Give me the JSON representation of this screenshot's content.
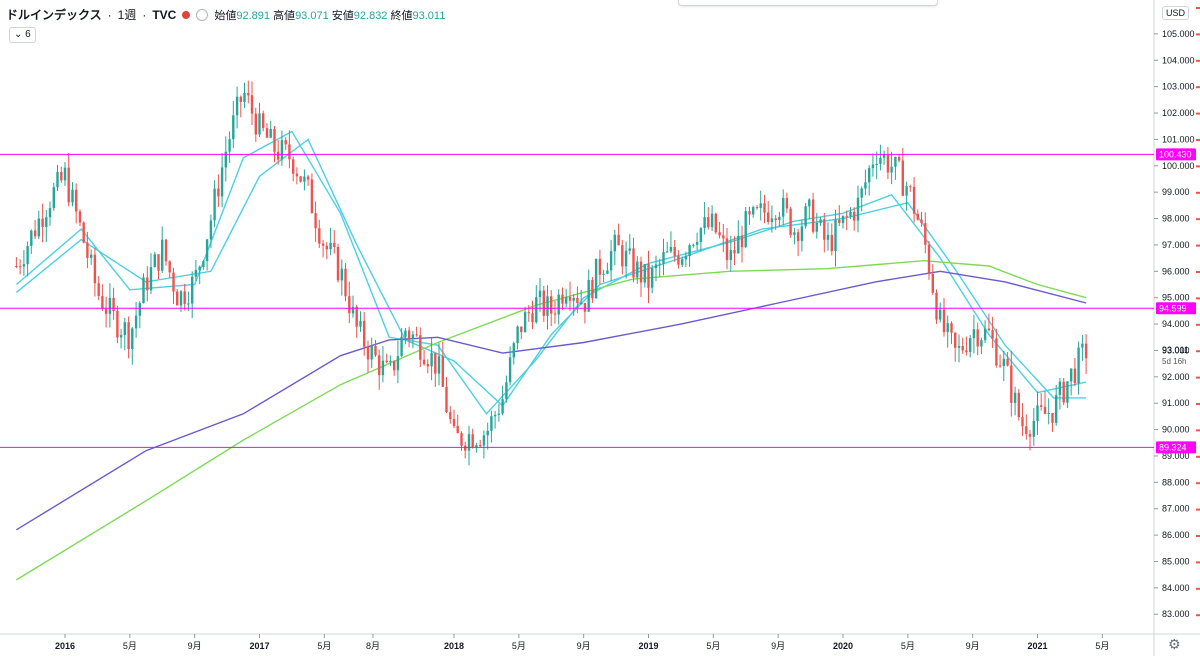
{
  "header": {
    "symbol": "ドルインデックス",
    "interval": "1週",
    "exchange": "TVC",
    "open_label": "始値",
    "open": "92.891",
    "high_label": "高値",
    "high": "93.071",
    "low_label": "安値",
    "low": "92.832",
    "close_label": "終値",
    "close": "93.011",
    "indicator_count": "6"
  },
  "currency": "USD",
  "countdown": "5d 16h",
  "colors": {
    "up": "#26a69a",
    "down": "#ef5350",
    "horizontal_line": "#ff00ff",
    "ma_short": "#4dd0e1",
    "ma_long": "#7ed957",
    "ma_mid": "#6a5acd"
  },
  "chart_data": {
    "type": "candlestick",
    "timeframe": "weekly",
    "ylim": [
      82.5,
      106
    ],
    "y_ticks": [
      "83.000",
      "84.000",
      "85.000",
      "86.000",
      "87.000",
      "88.000",
      "89.000",
      "90.000",
      "91.000",
      "92.000",
      "93.000",
      "94.000",
      "95.000",
      "96.000",
      "97.000",
      "98.000",
      "99.000",
      "100.000",
      "101.000",
      "102.000",
      "103.000",
      "104.000",
      "105.000"
    ],
    "x_ticks": [
      {
        "label": "2016",
        "date": "2016-01"
      },
      {
        "label": "5月",
        "date": "2016-05"
      },
      {
        "label": "9月",
        "date": "2016-09"
      },
      {
        "label": "2017",
        "date": "2017-01"
      },
      {
        "label": "5月",
        "date": "2017-05"
      },
      {
        "label": "8月",
        "date": "2017-08"
      },
      {
        "label": "2018",
        "date": "2018-01"
      },
      {
        "label": "5月",
        "date": "2018-05"
      },
      {
        "label": "9月",
        "date": "2018-09"
      },
      {
        "label": "2019",
        "date": "2019-01"
      },
      {
        "label": "5月",
        "date": "2019-05"
      },
      {
        "label": "9月",
        "date": "2019-09"
      },
      {
        "label": "2020",
        "date": "2020-01"
      },
      {
        "label": "5月",
        "date": "2020-05"
      },
      {
        "label": "9月",
        "date": "2020-09"
      },
      {
        "label": "2021",
        "date": "2021-01"
      },
      {
        "label": "5月",
        "date": "2021-05"
      }
    ],
    "horizontal_lines": [
      {
        "label": "100.430",
        "value": 100.43
      },
      {
        "label": "94.599",
        "value": 94.599
      },
      {
        "label": "89.324",
        "value": 89.324
      }
    ],
    "last_price": {
      "label": "93.011",
      "value": 93.011
    },
    "price_path": [
      [
        "2015-10",
        96.2
      ],
      [
        "2015-12",
        98.7
      ],
      [
        "2016-01",
        99.6
      ],
      [
        "2016-02",
        97.5
      ],
      [
        "2016-03",
        95.2
      ],
      [
        "2016-04",
        94.2
      ],
      [
        "2016-05",
        93.6
      ],
      [
        "2016-06",
        95.6
      ],
      [
        "2016-07",
        96.8
      ],
      [
        "2016-08",
        95.0
      ],
      [
        "2016-09",
        95.6
      ],
      [
        "2016-10",
        98.0
      ],
      [
        "2016-11",
        100.8
      ],
      [
        "2016-12",
        102.8
      ],
      [
        "2017-01",
        101.4
      ],
      [
        "2017-02",
        100.6
      ],
      [
        "2017-03",
        100.3
      ],
      [
        "2017-04",
        99.0
      ],
      [
        "2017-05",
        97.0
      ],
      [
        "2017-06",
        96.0
      ],
      [
        "2017-07",
        93.8
      ],
      [
        "2017-08",
        92.8
      ],
      [
        "2017-09",
        92.0
      ],
      [
        "2017-10",
        93.8
      ],
      [
        "2017-11",
        93.2
      ],
      [
        "2017-12",
        92.4
      ],
      [
        "2018-01",
        89.6
      ],
      [
        "2018-02",
        89.8
      ],
      [
        "2018-03",
        89.9
      ],
      [
        "2018-04",
        91.2
      ],
      [
        "2018-05",
        93.8
      ],
      [
        "2018-06",
        94.8
      ],
      [
        "2018-07",
        94.5
      ],
      [
        "2018-08",
        95.6
      ],
      [
        "2018-09",
        94.8
      ],
      [
        "2018-10",
        96.2
      ],
      [
        "2018-11",
        96.9
      ],
      [
        "2018-12",
        96.2
      ],
      [
        "2019-01",
        95.6
      ],
      [
        "2019-02",
        96.5
      ],
      [
        "2019-03",
        96.7
      ],
      [
        "2019-04",
        97.6
      ],
      [
        "2019-05",
        97.7
      ],
      [
        "2019-06",
        96.4
      ],
      [
        "2019-07",
        97.7
      ],
      [
        "2019-08",
        98.2
      ],
      [
        "2019-09",
        98.6
      ],
      [
        "2019-10",
        97.6
      ],
      [
        "2019-11",
        98.2
      ],
      [
        "2019-12",
        97.0
      ],
      [
        "2020-01",
        97.8
      ],
      [
        "2020-02",
        98.6
      ],
      [
        "2020-03",
        100.6
      ],
      [
        "2020-04",
        100.0
      ],
      [
        "2020-05",
        99.2
      ],
      [
        "2020-06",
        97.2
      ],
      [
        "2020-07",
        94.0
      ],
      [
        "2020-08",
        92.8
      ],
      [
        "2020-09",
        93.8
      ],
      [
        "2020-10",
        93.6
      ],
      [
        "2020-11",
        92.3
      ],
      [
        "2020-12",
        90.2
      ],
      [
        "2021-01",
        90.4
      ],
      [
        "2021-02",
        90.8
      ],
      [
        "2021-03",
        92.0
      ],
      [
        "2021-04",
        93.0
      ]
    ],
    "moving_averages": [
      {
        "color": "#4dd0e1",
        "points": [
          [
            "2015-10",
            95.5
          ],
          [
            "2016-02",
            97.6
          ],
          [
            "2016-05",
            95.3
          ],
          [
            "2016-09",
            95.5
          ],
          [
            "2016-12",
            100.3
          ],
          [
            "2017-03",
            101.3
          ],
          [
            "2017-06",
            98.2
          ],
          [
            "2017-09",
            93.5
          ],
          [
            "2017-12",
            93.2
          ],
          [
            "2018-03",
            90.6
          ],
          [
            "2018-06",
            92.6
          ],
          [
            "2018-09",
            95.0
          ],
          [
            "2019-01",
            96.3
          ],
          [
            "2019-06",
            97.1
          ],
          [
            "2019-10",
            97.9
          ],
          [
            "2020-01",
            98.2
          ],
          [
            "2020-04",
            98.9
          ],
          [
            "2020-07",
            96.5
          ],
          [
            "2020-10",
            93.6
          ],
          [
            "2021-01",
            91.4
          ],
          [
            "2021-04",
            91.8
          ]
        ]
      },
      {
        "color": "#4dd0e1",
        "points": [
          [
            "2015-10",
            95.2
          ],
          [
            "2016-02",
            97.2
          ],
          [
            "2016-06",
            95.6
          ],
          [
            "2016-10",
            96.0
          ],
          [
            "2017-01",
            99.6
          ],
          [
            "2017-04",
            101.0
          ],
          [
            "2017-07",
            97.0
          ],
          [
            "2017-10",
            93.4
          ],
          [
            "2018-01",
            92.6
          ],
          [
            "2018-04",
            90.9
          ],
          [
            "2018-07",
            93.6
          ],
          [
            "2018-10",
            95.5
          ],
          [
            "2019-03",
            96.5
          ],
          [
            "2019-08",
            97.6
          ],
          [
            "2020-01",
            98.0
          ],
          [
            "2020-05",
            98.6
          ],
          [
            "2020-08",
            96.0
          ],
          [
            "2020-11",
            93.2
          ],
          [
            "2021-02",
            91.2
          ],
          [
            "2021-04",
            91.2
          ]
        ]
      },
      {
        "color": "#7ed957",
        "points": [
          [
            "2015-10",
            84.3
          ],
          [
            "2016-06",
            87.3
          ],
          [
            "2016-12",
            89.6
          ],
          [
            "2017-06",
            91.7
          ],
          [
            "2017-12",
            93.3
          ],
          [
            "2018-06",
            94.7
          ],
          [
            "2018-12",
            95.7
          ],
          [
            "2019-06",
            96.0
          ],
          [
            "2019-12",
            96.1
          ],
          [
            "2020-06",
            96.4
          ],
          [
            "2020-10",
            96.2
          ],
          [
            "2021-01",
            95.5
          ],
          [
            "2021-04",
            95.0
          ]
        ]
      },
      {
        "color": "#6a5acd",
        "points": [
          [
            "2015-10",
            86.2
          ],
          [
            "2016-06",
            89.2
          ],
          [
            "2016-12",
            90.6
          ],
          [
            "2017-06",
            92.8
          ],
          [
            "2017-09",
            93.4
          ],
          [
            "2017-12",
            93.5
          ],
          [
            "2018-04",
            92.9
          ],
          [
            "2018-09",
            93.3
          ],
          [
            "2019-03",
            94.0
          ],
          [
            "2019-09",
            94.8
          ],
          [
            "2020-03",
            95.6
          ],
          [
            "2020-07",
            96.0
          ],
          [
            "2020-11",
            95.6
          ],
          [
            "2021-04",
            94.8
          ]
        ]
      }
    ]
  }
}
